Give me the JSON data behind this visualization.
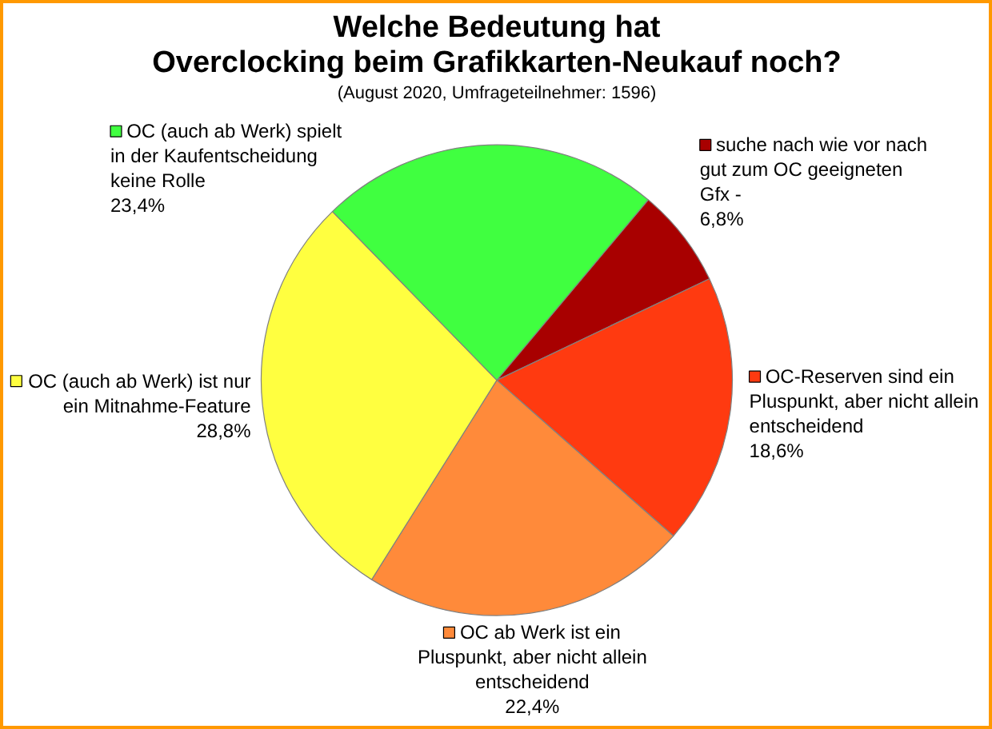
{
  "chart_data": {
    "type": "pie",
    "title": "Welche Bedeutung hat\nOverclocking beim Grafikkarten-Neukauf noch?",
    "subtitle": "(August 2020, Umfrageteilnehmer: 1596)",
    "categories": [
      "suche nach wie vor nach\ngut zum OC geeigneten\nGfx -",
      "OC-Reserven sind ein\nPluspunkt, aber nicht allein\nentscheidend",
      "OC ab Werk ist ein\nPluspunkt, aber nicht allein\nentscheidend",
      "OC (auch ab Werk) ist nur\nein Mitnahme-Feature",
      "OC (auch ab Werk) spielt\nin der Kaufentscheidung\nkeine Rolle"
    ],
    "values": [
      6.8,
      18.6,
      22.4,
      28.8,
      23.4
    ],
    "value_labels": [
      "6,8%",
      "18,6%",
      "22,4%",
      "28,8%",
      "23,4%"
    ],
    "legend": true,
    "colors": [
      "#a80000",
      "#ff3a10",
      "#ff8a3a",
      "#ffff40",
      "#40ff40"
    ]
  }
}
